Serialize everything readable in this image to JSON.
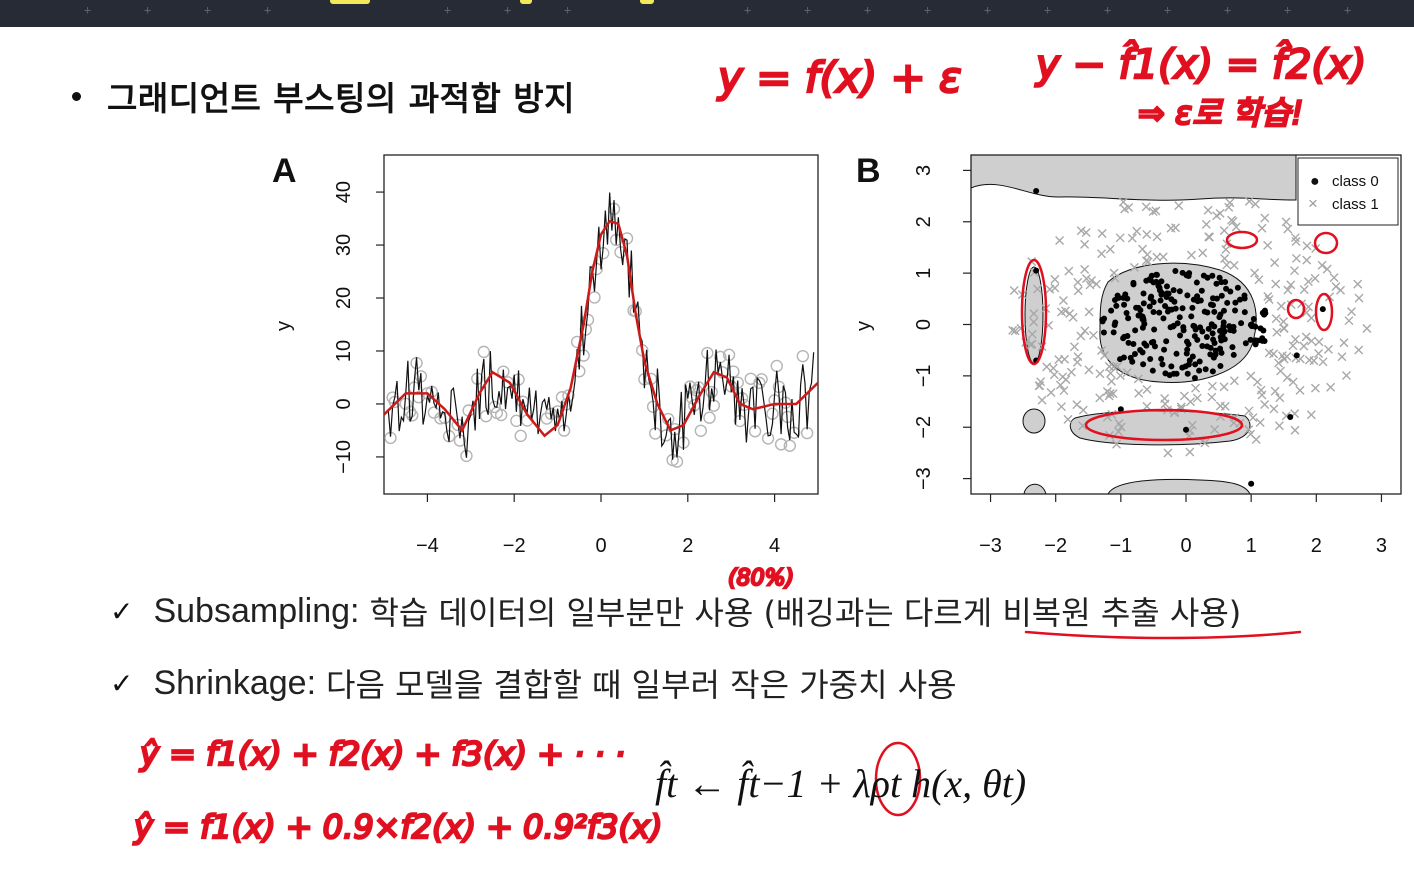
{
  "slide": {
    "bullet_title": "그래디언트 부스팅의 과적합 방지"
  },
  "bullets": [
    {
      "lead": "Subsampling:",
      "text": "학습 데이터의 일부분만 사용 (배깅과는 다르게 비복원 추출 사용)"
    },
    {
      "lead": "Shrinkage:",
      "text": "다음 모델을 결합할 때 일부러 작은 가중치 사용"
    }
  ],
  "formula": {
    "text": "f̂t ← f̂t−1 + λρt h(x, θt)"
  },
  "annotations": {
    "top_left": "y = f(x) + ε",
    "top_right": "y − f̂1(x) = f̂2(x)",
    "top_right_2": "⇒ ε로 학습!",
    "subsample_pct": "(80%)",
    "line1": "ŷ = f1(x) + f2(x) + f3(x) + · · ·",
    "line2": "ŷ = f1(x) + 0.9×f2(x) + 0.9²f3(x)"
  },
  "chart_data": [
    {
      "type": "line",
      "panel_label": "A",
      "ylabel": "y",
      "xlim": [
        -5,
        5
      ],
      "ylim": [
        -17,
        47
      ],
      "xticks": [
        "−4",
        "−2",
        "0",
        "2",
        "4"
      ],
      "yticks": [
        "−10",
        "0",
        "10",
        "20",
        "30",
        "40"
      ],
      "series": [
        {
          "style": "red-smooth",
          "color": "#cc1a1a",
          "x": [
            -5,
            -4.5,
            -4,
            -3.6,
            -3.2,
            -2.8,
            -2.5,
            -2.1,
            -1.7,
            -1.3,
            -1,
            -0.7,
            -0.4,
            -0.2,
            0,
            0.2,
            0.4,
            0.6,
            0.8,
            1,
            1.3,
            1.6,
            1.9,
            2.3,
            2.6,
            2.9,
            3.2,
            3.5,
            4,
            4.5,
            5
          ],
          "y": [
            -2,
            2,
            2,
            -1,
            -5,
            2,
            6,
            4,
            -2,
            -6,
            -4,
            3,
            15,
            25,
            32,
            34.5,
            34,
            28,
            17,
            8,
            0,
            -5,
            -4,
            2,
            6,
            5,
            0,
            -1,
            0,
            0,
            4
          ]
        }
      ],
      "scatter_note": "grey open circles (noisy samples) with black zig-zag line"
    },
    {
      "type": "scatter",
      "panel_label": "B",
      "ylabel": "y",
      "xlim": [
        -3.3,
        3.3
      ],
      "ylim": [
        -3.3,
        3.3
      ],
      "xticks": [
        "−3",
        "−2",
        "−1",
        "0",
        "1",
        "2",
        "3"
      ],
      "yticks": [
        "−3",
        "−2",
        "−1",
        "0",
        "1",
        "2",
        "3"
      ],
      "legend": {
        "position": "top-right",
        "entries": [
          {
            "marker": "●",
            "label": "class 0"
          },
          {
            "marker": "×",
            "label": "class 1"
          }
        ]
      },
      "class0_color": "#000000",
      "class1_color": "#a8a8a8",
      "region_color": "#cfcfcf"
    }
  ]
}
